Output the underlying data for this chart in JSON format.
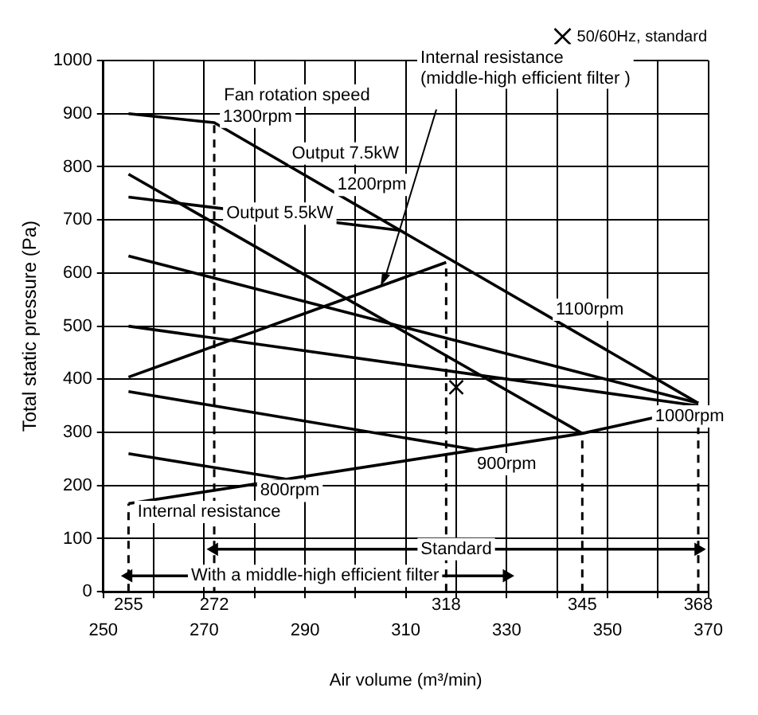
{
  "chart_data": {
    "type": "line",
    "xlabel": "Air volume (m³/min)",
    "ylabel": "Total static pressure (Pa)",
    "xlim": [
      250,
      370
    ],
    "xticks": [
      250,
      {
        "value": 260,
        "label": null
      },
      270,
      {
        "value": 280,
        "label": null
      },
      290,
      {
        "value": 300,
        "label": null
      },
      310,
      {
        "value": 320,
        "label": null
      },
      330,
      {
        "value": 340,
        "label": null
      },
      350,
      {
        "value": 360,
        "label": null
      },
      370
    ],
    "ylim": [
      0,
      1000
    ],
    "yticks": [
      0,
      100,
      200,
      300,
      400,
      500,
      600,
      700,
      800,
      900,
      1000
    ],
    "grid": true,
    "legend": "top right",
    "series": [
      {
        "color": "#000000",
        "x": [
          255,
          272,
          368
        ],
        "values": [
          900,
          883,
          355
        ]
      },
      {
        "color": "#000000",
        "x": [
          255,
          345
        ],
        "values": [
          786,
          298
        ]
      },
      {
        "color": "#000000",
        "x": [
          255,
          309
        ],
        "values": [
          743,
          680
        ]
      },
      {
        "color": "#000000",
        "x": [
          255,
          368
        ],
        "values": [
          632,
          355
        ]
      },
      {
        "color": "#000000",
        "x": [
          255,
          368
        ],
        "values": [
          500,
          350
        ]
      },
      {
        "color": "#000000",
        "x": [
          255,
          324
        ],
        "values": [
          377,
          267
        ]
      },
      {
        "color": "#000000",
        "x": [
          255,
          287.5
        ],
        "values": [
          260,
          210
        ]
      },
      {
        "color": "#000000",
        "x": [
          255,
          345,
          368
        ],
        "values": [
          166,
          298,
          346
        ]
      },
      {
        "color": "#000000",
        "x": [
          255,
          318
        ],
        "values": [
          404,
          620
        ]
      },
      {
        "color": "#000000",
        "line_style": "dashed",
        "x": [
          255,
          255
        ],
        "values": [
          0,
          166
        ]
      },
      {
        "color": "#000000",
        "line_style": "dashed",
        "x": [
          272,
          272
        ],
        "values": [
          0,
          883
        ]
      },
      {
        "color": "#000000",
        "line_style": "dashed",
        "x": [
          318,
          318
        ],
        "values": [
          0,
          620
        ]
      },
      {
        "color": "#000000",
        "line_style": "dashed",
        "x": [
          345,
          345
        ],
        "values": [
          0,
          298
        ]
      },
      {
        "color": "#000000",
        "line_style": "dashed",
        "x": [
          368,
          368
        ],
        "values": [
          0,
          346
        ]
      },
      {
        "color": "#000000",
        "marker": "triangle",
        "x": [
          272,
          368
        ],
        "values": [
          80,
          80
        ]
      },
      {
        "color": "#000000",
        "marker": "triangle",
        "x": [
          255,
          330
        ],
        "values": [
          30,
          30
        ]
      },
      {
        "type": "scatter",
        "name": "50/60Hz, standard",
        "color": "#000000",
        "marker": "cross",
        "x": [
          320
        ],
        "values": [
          385
        ]
      }
    ],
    "annotations": [
      "Fan rotation speed",
      "1300rpm",
      "Output 7.5kW",
      "1200rpm",
      {
        "text": "Output 5.5kW",
        "x": 285,
        "y": 712
      },
      "1100rpm",
      {
        "text": "1000rpm",
        "x": 368,
        "y": 330
      },
      {
        "text": "900rpm",
        "x": 330,
        "y": 240
      },
      {
        "text": "800rpm",
        "x": 287,
        "y": 190
      },
      {
        "text": "Internal resistance",
        "x": 271,
        "y": 150
      },
      {
        "text": "Internal resistance\n(middle-high efficient filter )",
        "x": 305,
        "y": 575
      },
      {
        "text": "255",
        "x": 255,
        "y": 0
      },
      {
        "text": "272",
        "x": 272,
        "y": 0
      },
      {
        "text": "318",
        "x": 318,
        "y": 0
      },
      {
        "text": "345",
        "x": 345,
        "y": 0
      },
      {
        "text": "368",
        "x": 368,
        "y": 0
      },
      {
        "text": "Standard",
        "x": 320,
        "y": 80
      },
      {
        "text": "With a middle-high efficient filter",
        "x": 292,
        "y": 30
      }
    ]
  }
}
